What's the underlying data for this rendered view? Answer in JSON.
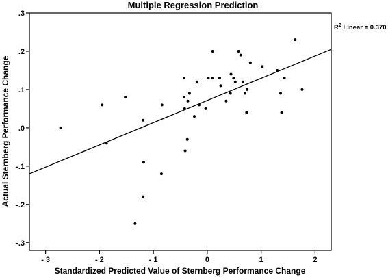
{
  "chart_data": {
    "type": "scatter",
    "title": "Multiple Regression Prediction",
    "xlabel": "Standardized Predicted Value of Sternberg Performance Change",
    "ylabel": "Actual Sternberg Performance Change",
    "xlim": [
      -3.3,
      2.3
    ],
    "ylim": [
      -0.32,
      0.3
    ],
    "xticks": [
      -3,
      -2,
      -1,
      0,
      1,
      2
    ],
    "xtick_labels": [
      "- 3",
      "- 2",
      "- 1",
      "0",
      "1",
      "2"
    ],
    "yticks": [
      0.3,
      0.2,
      0.1,
      0.0,
      -0.1,
      -0.2,
      -0.3
    ],
    "ytick_labels": [
      ".3",
      ".2",
      ".1",
      ".0",
      "-.1",
      "-.2",
      "-.3"
    ],
    "grid": false,
    "fit_line": {
      "type": "linear",
      "label": "R² Linear = 0.370",
      "endpoints": [
        [
          -3.3,
          -0.12
        ],
        [
          2.3,
          0.205
        ]
      ]
    },
    "points": [
      {
        "x": -2.72,
        "y": 0.0
      },
      {
        "x": -1.95,
        "y": 0.06
      },
      {
        "x": -1.87,
        "y": -0.04
      },
      {
        "x": -1.52,
        "y": 0.08
      },
      {
        "x": -1.19,
        "y": 0.02
      },
      {
        "x": -1.18,
        "y": -0.09
      },
      {
        "x": -1.19,
        "y": -0.18
      },
      {
        "x": -1.34,
        "y": -0.25
      },
      {
        "x": -0.85,
        "y": -0.12
      },
      {
        "x": -0.84,
        "y": 0.06
      },
      {
        "x": -0.43,
        "y": 0.13
      },
      {
        "x": -0.43,
        "y": 0.08
      },
      {
        "x": -0.42,
        "y": 0.05
      },
      {
        "x": -0.36,
        "y": 0.07
      },
      {
        "x": -0.33,
        "y": 0.09
      },
      {
        "x": -0.41,
        "y": -0.06
      },
      {
        "x": -0.37,
        "y": -0.03
      },
      {
        "x": -0.24,
        "y": 0.03
      },
      {
        "x": -0.19,
        "y": 0.12
      },
      {
        "x": -0.15,
        "y": 0.06
      },
      {
        "x": -0.03,
        "y": 0.05
      },
      {
        "x": 0.02,
        "y": 0.13
      },
      {
        "x": 0.09,
        "y": 0.13
      },
      {
        "x": 0.1,
        "y": 0.2
      },
      {
        "x": 0.23,
        "y": 0.13
      },
      {
        "x": 0.25,
        "y": 0.11
      },
      {
        "x": 0.35,
        "y": 0.07
      },
      {
        "x": 0.43,
        "y": 0.09
      },
      {
        "x": 0.44,
        "y": 0.14
      },
      {
        "x": 0.49,
        "y": 0.13
      },
      {
        "x": 0.52,
        "y": 0.12
      },
      {
        "x": 0.58,
        "y": 0.2
      },
      {
        "x": 0.62,
        "y": 0.19
      },
      {
        "x": 0.66,
        "y": 0.12
      },
      {
        "x": 0.7,
        "y": 0.09
      },
      {
        "x": 0.74,
        "y": 0.1
      },
      {
        "x": 0.73,
        "y": 0.04
      },
      {
        "x": 0.8,
        "y": 0.17
      },
      {
        "x": 1.02,
        "y": 0.16
      },
      {
        "x": 1.3,
        "y": 0.15
      },
      {
        "x": 1.36,
        "y": 0.09
      },
      {
        "x": 1.38,
        "y": 0.04
      },
      {
        "x": 1.43,
        "y": 0.13
      },
      {
        "x": 1.63,
        "y": 0.23
      },
      {
        "x": 1.76,
        "y": 0.1
      }
    ]
  }
}
